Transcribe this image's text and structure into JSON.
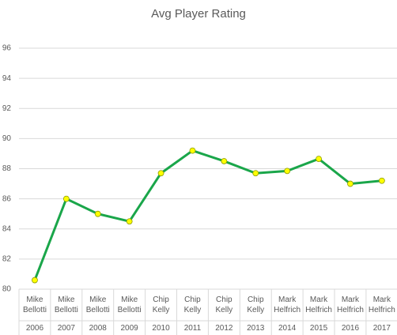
{
  "chart_data": {
    "type": "line",
    "title": "Avg Player Rating",
    "categories": [
      "2006",
      "2007",
      "2008",
      "2009",
      "2010",
      "2011",
      "2012",
      "2013",
      "2014",
      "2015",
      "2016",
      "2017"
    ],
    "coaches": [
      "Mike Bellotti",
      "Mike Bellotti",
      "Mike Bellotti",
      "Mike Bellotti",
      "Chip Kelly",
      "Chip Kelly",
      "Chip Kelly",
      "Chip Kelly",
      "Mark Helfrich",
      "Mark Helfrich",
      "Mark Helfrich",
      "Mark Helfrich"
    ],
    "values": [
      80.6,
      86.0,
      85.0,
      84.5,
      87.7,
      89.2,
      88.5,
      87.7,
      87.85,
      88.65,
      87.0,
      87.2
    ],
    "color": "#1aa64a",
    "marker_color": "#ffff00",
    "ylim": [
      80,
      96
    ],
    "yticks": [
      80,
      82,
      84,
      86,
      88,
      90,
      92,
      94,
      96
    ],
    "grid": true
  }
}
